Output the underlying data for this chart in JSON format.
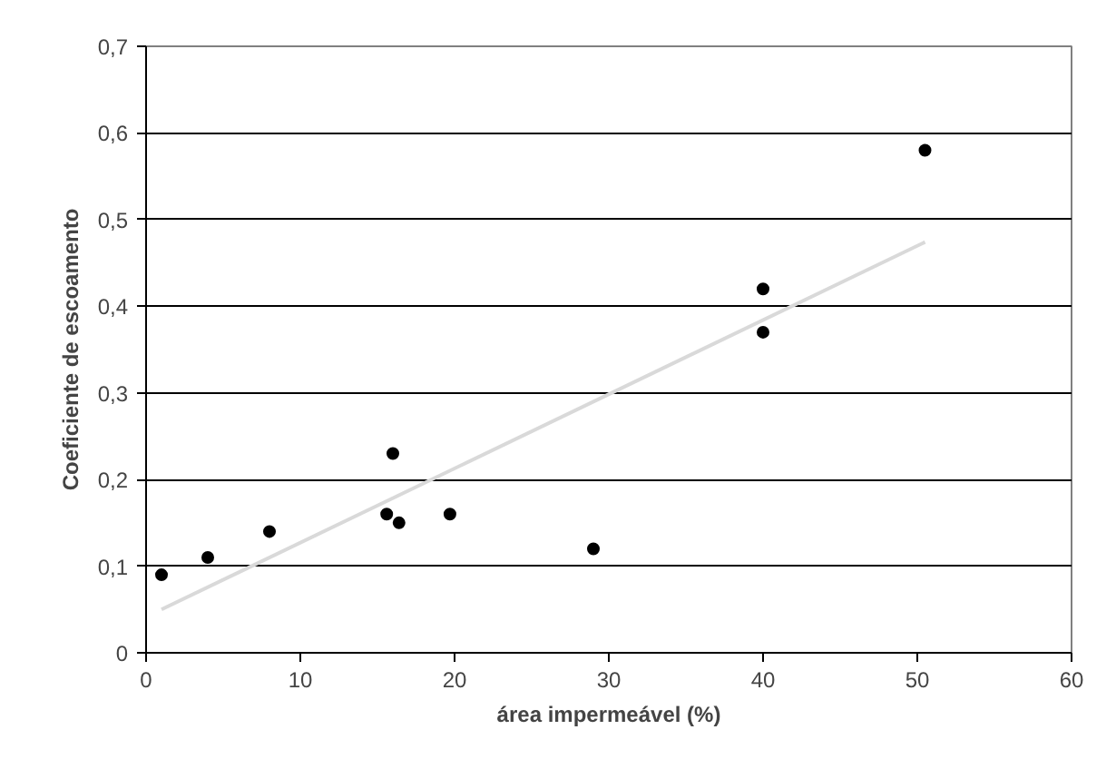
{
  "chart_data": {
    "type": "scatter",
    "xlabel": "área impermeável (%)",
    "ylabel": "Coeficiente de escoamento",
    "x": [
      1,
      4,
      8,
      15.6,
      16,
      16.4,
      19.7,
      29,
      40,
      40,
      50.5
    ],
    "series": [
      {
        "color": "#000000",
        "marker": "circle",
        "values": [
          0.09,
          0.11,
          0.14,
          0.16,
          0.23,
          0.15,
          0.16,
          0.12,
          0.42,
          0.37,
          0.58
        ]
      },
      {
        "type": "line",
        "marker": "none",
        "color": "#d9d9d9",
        "x": [
          1,
          50.5
        ],
        "values": [
          0.05,
          0.474
        ]
      }
    ],
    "xlim": [
      0,
      60
    ],
    "xticks": [
      0,
      10,
      20,
      30,
      40,
      50,
      60
    ],
    "ylim": [
      0,
      0.7
    ],
    "yticks": [
      0,
      {
        "value": 0.1,
        "label": "0,1"
      },
      {
        "value": 0.2,
        "label": "0,2"
      },
      {
        "value": 0.3,
        "label": "0,3"
      },
      {
        "value": 0.4,
        "label": "0,4"
      },
      {
        "value": 0.5,
        "label": "0,5"
      },
      {
        "value": 0.6,
        "label": "0,6"
      },
      {
        "value": 0.7,
        "label": "0,7"
      }
    ],
    "grid": "y"
  }
}
